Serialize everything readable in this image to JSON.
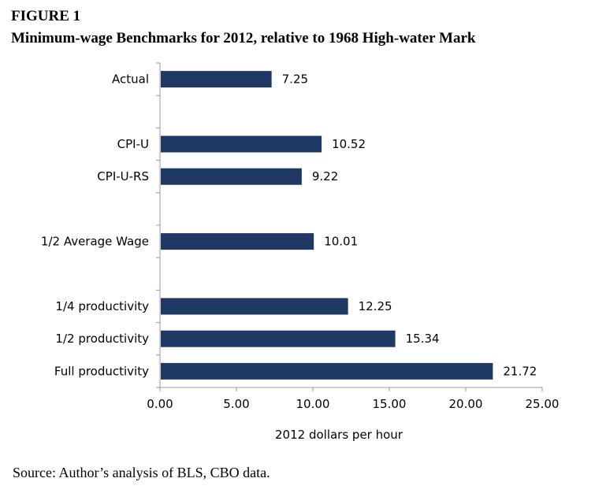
{
  "figure": {
    "label": "FIGURE 1",
    "title": "Minimum-wage Benchmarks for 2012, relative to 1968 High-water Mark",
    "source": "Source: Author’s analysis of BLS, CBO data."
  },
  "chart_data": {
    "type": "bar",
    "orientation": "horizontal",
    "categories": [
      "Actual",
      "CPI-U",
      "CPI-U-RS",
      "1/2 Average Wage",
      "1/4 productivity",
      "1/2 productivity",
      "Full productivity"
    ],
    "group_gaps_after": [
      "Actual",
      "CPI-U-RS",
      "1/2 Average Wage"
    ],
    "values": [
      7.25,
      10.52,
      9.22,
      10.01,
      12.25,
      15.34,
      21.72
    ],
    "data_labels": [
      "7.25",
      "10.52",
      "9.22",
      "10.01",
      "12.25",
      "15.34",
      "21.72"
    ],
    "xlabel": "2012 dollars per hour",
    "xlim": [
      0,
      25
    ],
    "xticks": [
      0,
      5,
      10,
      15,
      20,
      25
    ],
    "xtick_labels": [
      "0.00",
      "5.00",
      "10.00",
      "15.00",
      "20.00",
      "25.00"
    ],
    "bar_color": "#1f3864",
    "grid": false
  }
}
